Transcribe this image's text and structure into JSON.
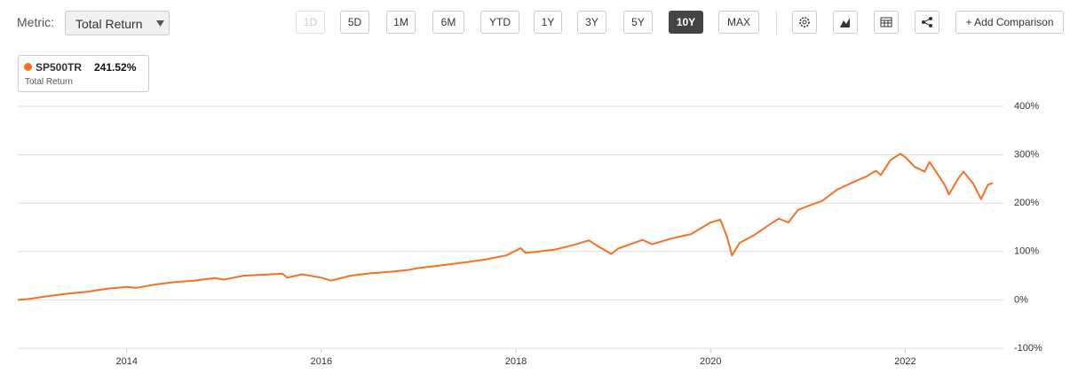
{
  "toolbar": {
    "metric_label": "Metric:",
    "metric_value": "Total Return",
    "ranges": [
      "1D",
      "5D",
      "1M",
      "6M",
      "YTD",
      "1Y",
      "3Y",
      "5Y",
      "10Y",
      "MAX"
    ],
    "active_range": "10Y",
    "disabled_ranges": [
      "1D"
    ],
    "add_comparison": "+ Add Comparison"
  },
  "legend": {
    "symbol": "SP500TR",
    "value": "241.52%",
    "metric": "Total Return"
  },
  "chart_data": {
    "type": "line",
    "x": [
      2012.88,
      2013.0,
      2013.2,
      2013.4,
      2013.6,
      2013.8,
      2014.0,
      2014.1,
      2014.3,
      2014.5,
      2014.7,
      2014.9,
      2015.0,
      2015.2,
      2015.4,
      2015.6,
      2015.65,
      2015.8,
      2016.0,
      2016.1,
      2016.3,
      2016.5,
      2016.7,
      2016.9,
      2017.0,
      2017.3,
      2017.5,
      2017.7,
      2017.9,
      2018.05,
      2018.1,
      2018.2,
      2018.4,
      2018.6,
      2018.75,
      2018.85,
      2018.98,
      2019.05,
      2019.3,
      2019.4,
      2019.6,
      2019.8,
      2020.0,
      2020.1,
      2020.17,
      2020.22,
      2020.3,
      2020.45,
      2020.6,
      2020.7,
      2020.8,
      2020.9,
      2021.0,
      2021.15,
      2021.3,
      2021.45,
      2021.6,
      2021.7,
      2021.75,
      2021.85,
      2021.95,
      2022.0,
      2022.1,
      2022.2,
      2022.25,
      2022.4,
      2022.45,
      2022.55,
      2022.6,
      2022.7,
      2022.78,
      2022.85,
      2022.9
    ],
    "series": [
      {
        "name": "SP500TR",
        "color": "#f47124",
        "values": [
          0,
          2,
          8,
          13,
          17,
          23,
          27,
          25,
          32,
          37,
          40,
          45,
          42,
          50,
          52,
          54,
          46,
          53,
          46,
          40,
          50,
          55,
          58,
          62,
          66,
          73,
          78,
          84,
          92,
          107,
          97,
          99,
          104,
          114,
          123,
          110,
          95,
          106,
          124,
          115,
          127,
          136,
          160,
          166,
          130,
          92,
          118,
          134,
          155,
          168,
          160,
          186,
          194,
          205,
          228,
          242,
          255,
          267,
          258,
          289,
          302,
          295,
          275,
          265,
          285,
          240,
          218,
          252,
          265,
          240,
          208,
          238,
          241.52
        ]
      }
    ],
    "xlim": [
      2012.88,
      2022.9
    ],
    "xticks": [
      2014,
      2016,
      2018,
      2020,
      2022
    ],
    "ylim": [
      -100,
      400
    ],
    "yticks": [
      {
        "value": -100,
        "label": "-100%"
      },
      {
        "value": 0,
        "label": "0%"
      },
      {
        "value": 100,
        "label": "100%"
      },
      {
        "value": 200,
        "label": "200%"
      },
      {
        "value": 300,
        "label": "300%"
      },
      {
        "value": 400,
        "label": "400%"
      }
    ],
    "grid": true
  }
}
